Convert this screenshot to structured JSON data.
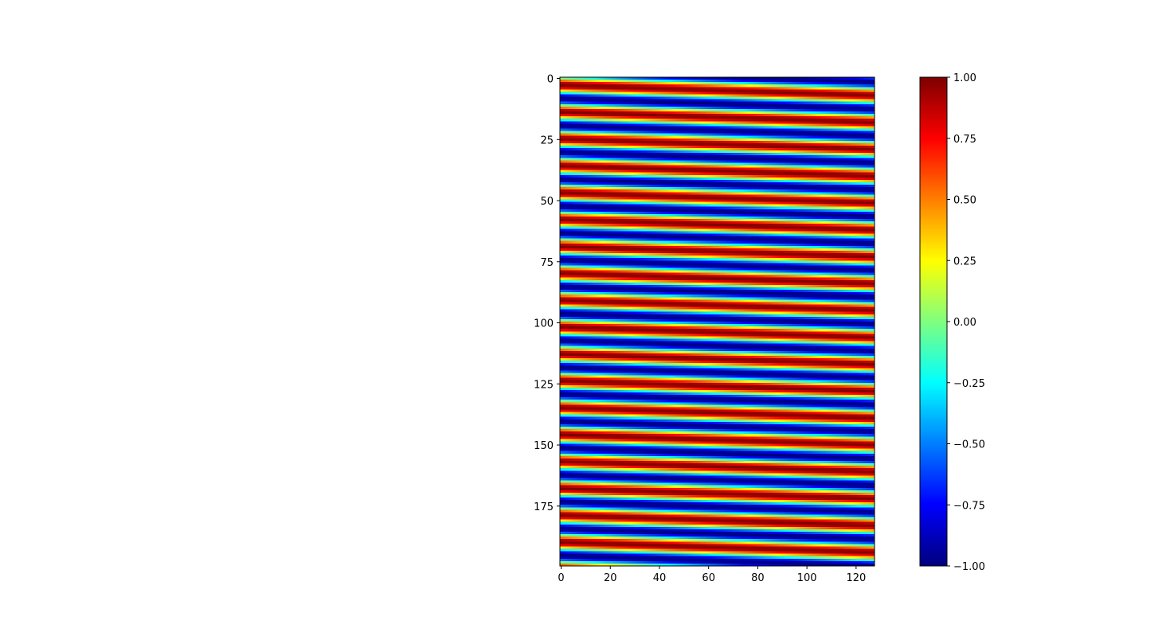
{
  "chart_data": {
    "type": "heatmap",
    "title": "",
    "xlabel": "",
    "ylabel": "",
    "colormap": "jet",
    "value_range": [
      -1.0,
      1.0
    ],
    "rows": 200,
    "columns": 128,
    "xlim": [
      0,
      128
    ],
    "ylim": [
      200,
      0
    ],
    "pattern": "sinusoidal stripes, value = sin(2*pi*(row/11 - column/330)), stripes descending left to right",
    "x_ticks": [
      "0",
      "20",
      "40",
      "60",
      "80",
      "100",
      "120"
    ],
    "x_tick_values": [
      0,
      20,
      40,
      60,
      80,
      100,
      120
    ],
    "y_ticks": [
      "0",
      "25",
      "50",
      "75",
      "100",
      "125",
      "150",
      "175"
    ],
    "y_tick_values": [
      0,
      25,
      50,
      75,
      100,
      125,
      150,
      175
    ],
    "colorbar": {
      "ticks": [
        "−1.00",
        "−0.75",
        "−0.50",
        "−0.25",
        "0.00",
        "0.25",
        "0.50",
        "0.75",
        "1.00"
      ],
      "tick_values": [
        -1.0,
        -0.75,
        -0.5,
        -0.25,
        0.0,
        0.25,
        0.5,
        0.75,
        1.0
      ]
    }
  }
}
